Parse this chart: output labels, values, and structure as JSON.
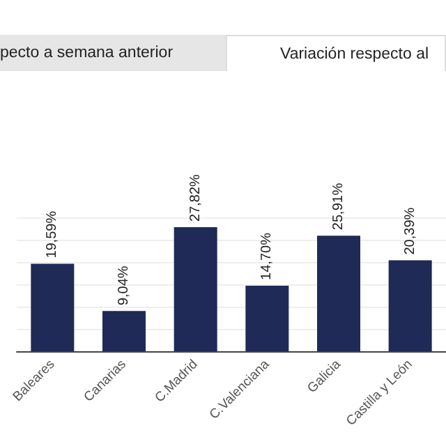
{
  "chart_data": {
    "type": "bar",
    "annotations": [
      "pecto a semana anterior",
      "Variación respecto al"
    ],
    "categories": [
      "Baleares",
      "Canarias",
      "C.Madrid",
      "C.Valenciana",
      "Galicia",
      "Castilla y León"
    ],
    "values": [
      19.59,
      9.04,
      27.82,
      14.7,
      25.91,
      20.39
    ],
    "value_labels": [
      "19,59%",
      "9,04%",
      "27,82%",
      "14,70%",
      "25,91%",
      "20,39%"
    ],
    "color": "#1f2a56",
    "grid": "y"
  }
}
